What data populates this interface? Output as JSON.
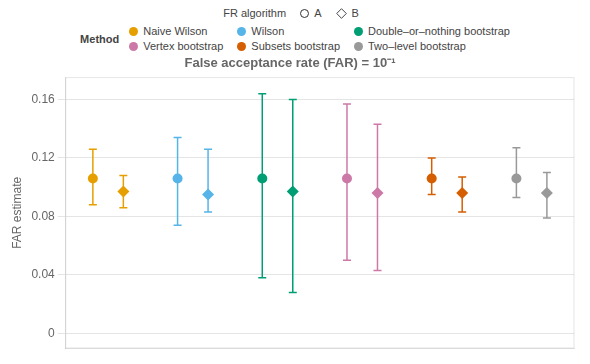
{
  "chart_data": {
    "type": "scatter",
    "title": "False acceptance rate (FAR) = 10⁻¹",
    "ylabel": "FAR estimate",
    "series_legend_title": "FR algorithm",
    "category_legend_title": "Method",
    "categories": [
      "Naive Wilson",
      "Wilson",
      "Double–or–nothing bootstrap",
      "Vertex bootstrap",
      "Subsets bootstrap",
      "Two–level bootstrap"
    ],
    "colors": [
      "#E69F00",
      "#56B4E9",
      "#009E73",
      "#CC79A7",
      "#D55E00",
      "#999999"
    ],
    "series": [
      {
        "name": "A",
        "marker": "circle",
        "values": [
          0.106,
          0.106,
          0.106,
          0.106,
          0.106,
          0.106
        ],
        "lo": [
          0.088,
          0.074,
          0.038,
          0.05,
          0.095,
          0.093
        ],
        "hi": [
          0.126,
          0.134,
          0.164,
          0.157,
          0.12,
          0.127
        ]
      },
      {
        "name": "B",
        "marker": "diamond",
        "values": [
          0.097,
          0.095,
          0.097,
          0.096,
          0.096,
          0.096
        ],
        "lo": [
          0.086,
          0.083,
          0.028,
          0.043,
          0.083,
          0.079
        ],
        "hi": [
          0.108,
          0.126,
          0.16,
          0.143,
          0.107,
          0.11
        ]
      }
    ],
    "ylim": [
      -0.01,
      0.175
    ],
    "yticks": [
      0,
      0.04,
      0.08,
      0.12,
      0.16
    ],
    "grid": true,
    "legend": "top",
    "tick_labels": "y"
  }
}
